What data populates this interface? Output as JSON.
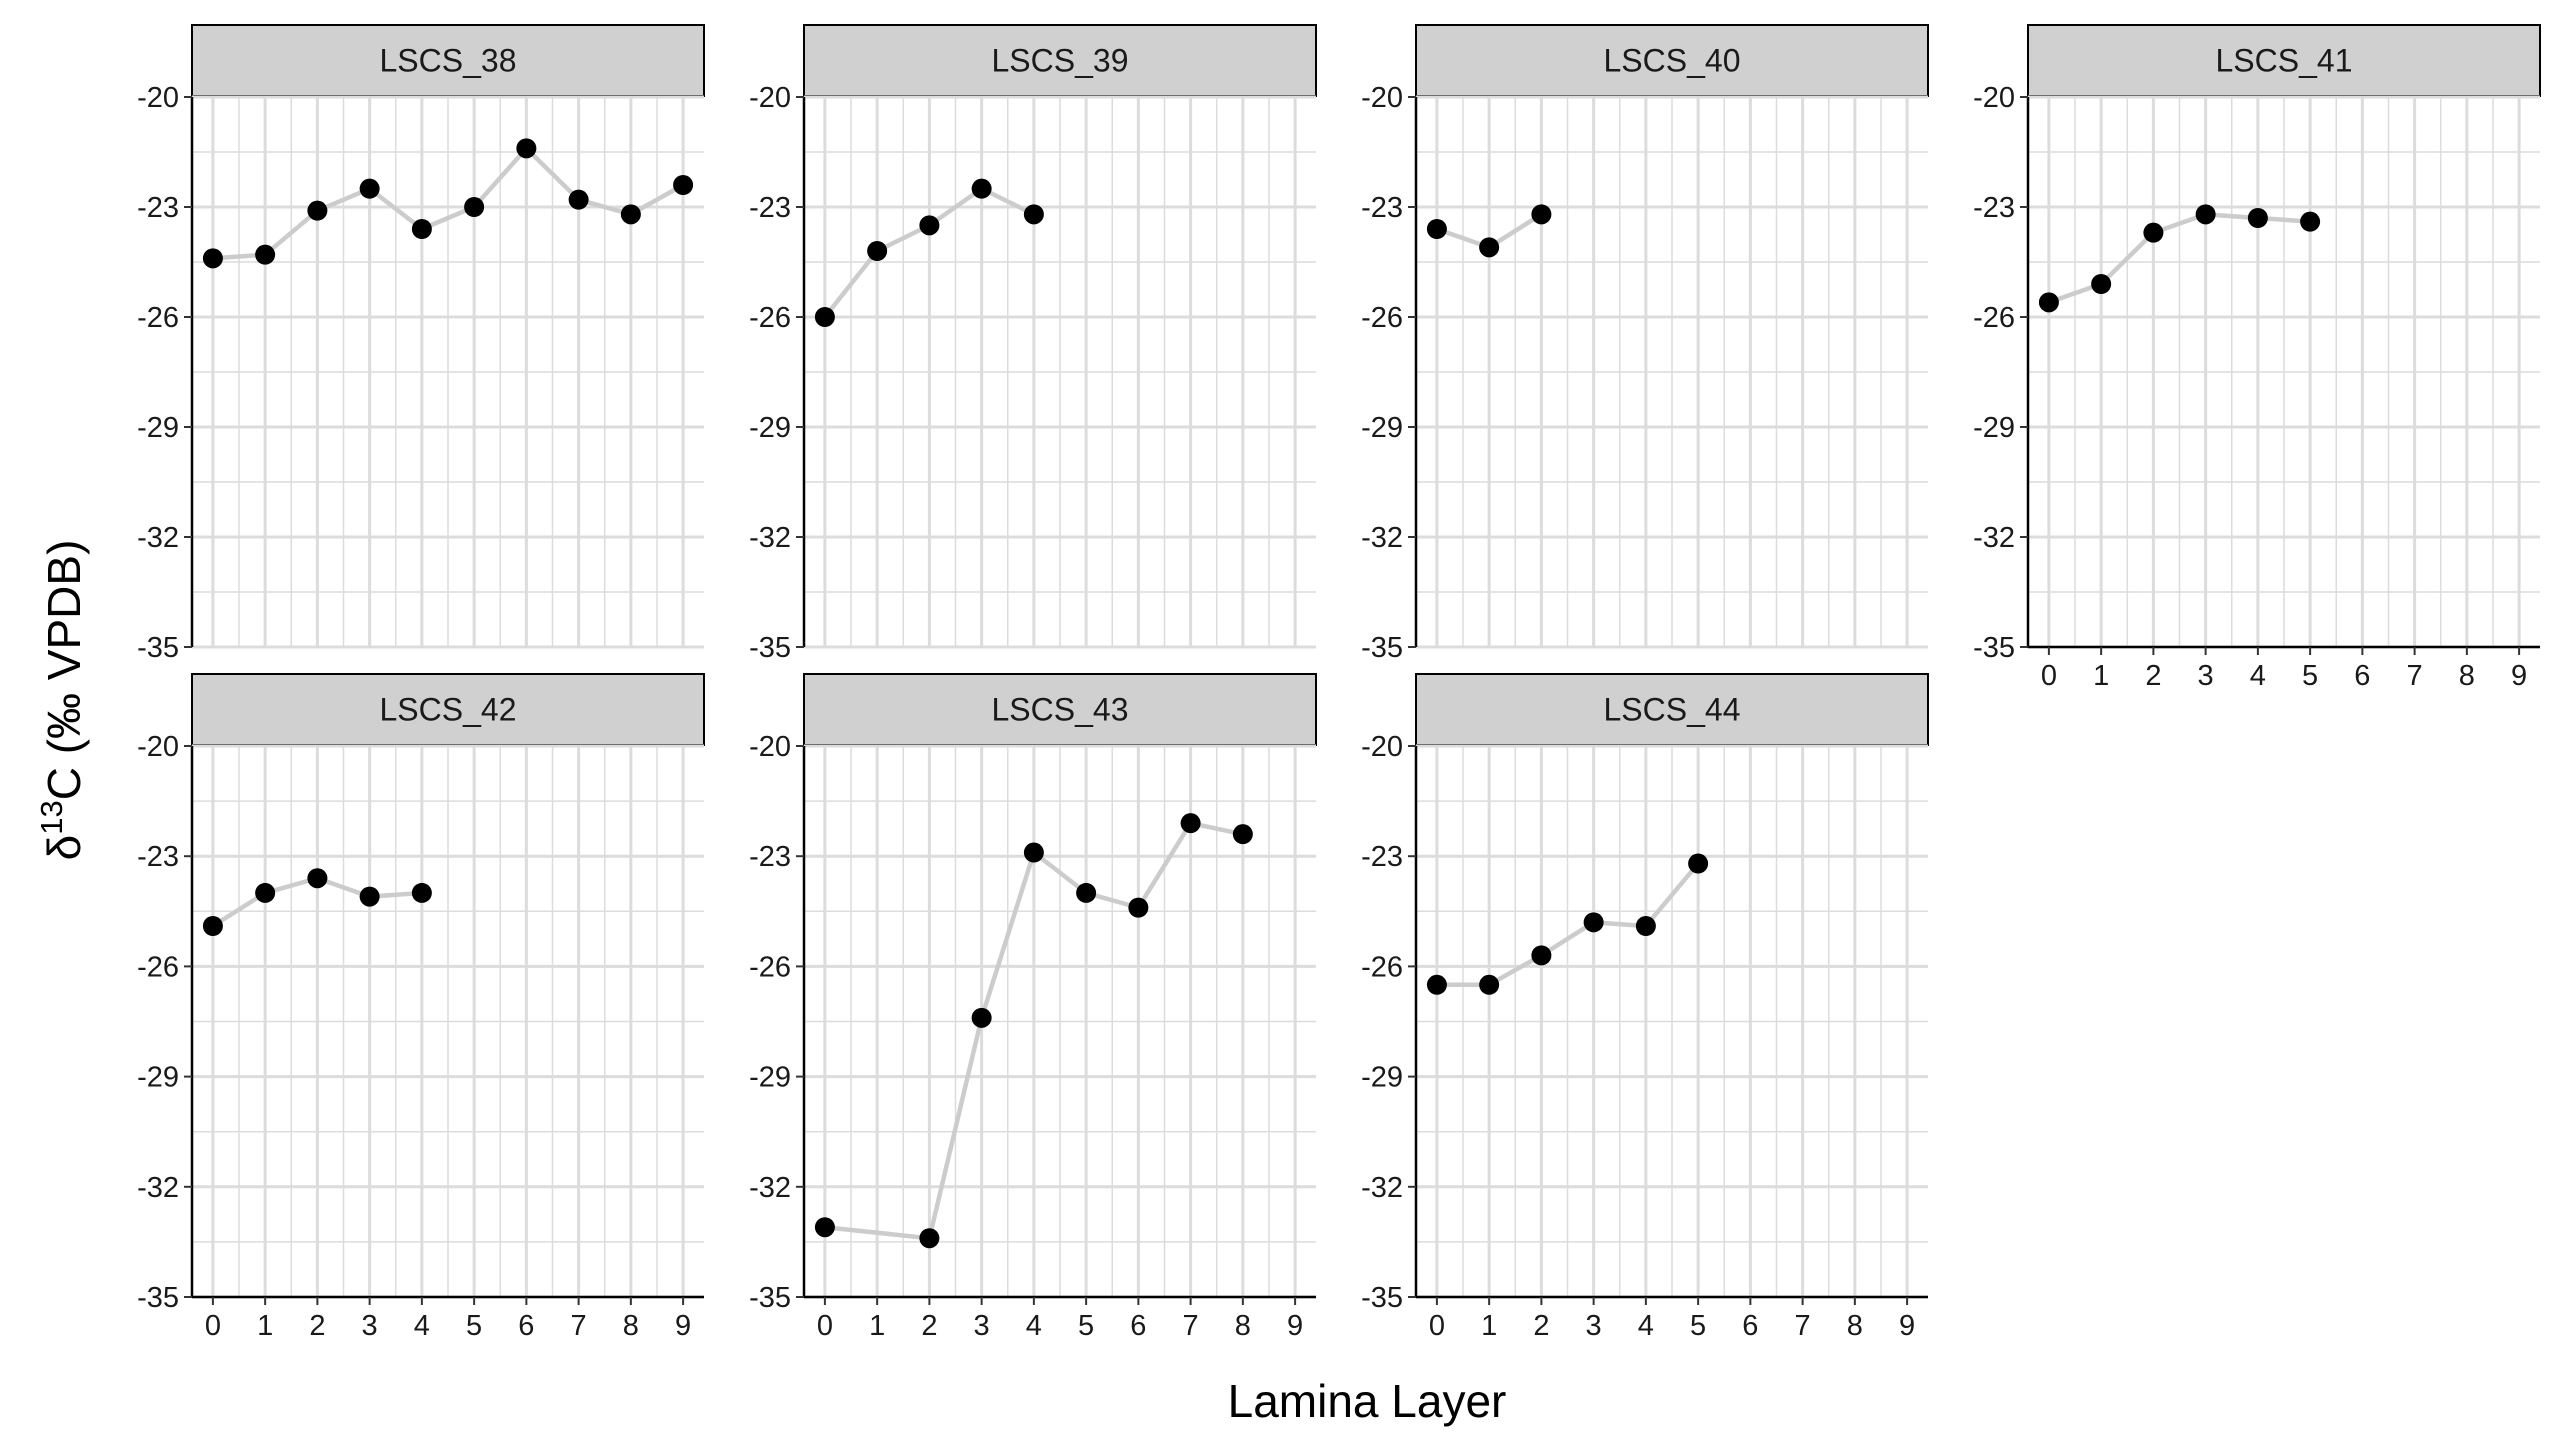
{
  "figure": {
    "xlabel": "Lamina Layer",
    "ylabel": {
      "prefix": "δ",
      "superscript": "13",
      "rest": "C (‰  VPDB)"
    }
  },
  "style": {
    "strip_fill": "#d0d0d0",
    "grid_color": "#dcdcdc",
    "line_color": "#cccccc",
    "point_color": "#000000",
    "axis_color": "#000000"
  },
  "chart_data": {
    "type": "line",
    "facet_layout": "4 columns × 2 rows, free x-axis per panel",
    "x_ticks": [
      0,
      1,
      2,
      3,
      4,
      5,
      6,
      7,
      8,
      9
    ],
    "y_ticks": [
      -20,
      -23,
      -26,
      -29,
      -32,
      -35
    ],
    "xlim": [
      -0.4,
      9.4
    ],
    "ylim": [
      -35,
      -20
    ],
    "grid": true,
    "panels": [
      {
        "name": "LSCS_38",
        "x": [
          0,
          1,
          2,
          3,
          4,
          5,
          6,
          7,
          8,
          9
        ],
        "y": [
          -24.4,
          -24.3,
          -23.1,
          -22.5,
          -23.6,
          -23.0,
          -21.4,
          -22.8,
          -23.2,
          -22.4
        ]
      },
      {
        "name": "LSCS_39",
        "x": [
          0,
          1,
          2,
          3,
          4
        ],
        "y": [
          -26.0,
          -24.2,
          -23.5,
          -22.5,
          -23.2
        ]
      },
      {
        "name": "LSCS_40",
        "x": [
          0,
          1,
          2
        ],
        "y": [
          -23.6,
          -24.1,
          -23.2
        ]
      },
      {
        "name": "LSCS_41",
        "x": [
          0,
          1,
          2,
          3,
          4,
          5
        ],
        "y": [
          -25.6,
          -25.1,
          -23.7,
          -23.2,
          -23.3,
          -23.4
        ]
      },
      {
        "name": "LSCS_42",
        "x": [
          0,
          1,
          2,
          3,
          4
        ],
        "y": [
          -24.9,
          -24.0,
          -23.6,
          -24.1,
          -24.0
        ]
      },
      {
        "name": "LSCS_43",
        "x": [
          0,
          2,
          3,
          4,
          5,
          6,
          7,
          8
        ],
        "y": [
          -33.1,
          -33.4,
          -27.4,
          -22.9,
          -24.0,
          -24.4,
          -22.1,
          -22.4
        ]
      },
      {
        "name": "LSCS_44",
        "x": [
          0,
          1,
          2,
          3,
          4,
          5
        ],
        "y": [
          -26.5,
          -26.5,
          -25.7,
          -24.8,
          -24.9,
          -23.2
        ]
      }
    ]
  }
}
